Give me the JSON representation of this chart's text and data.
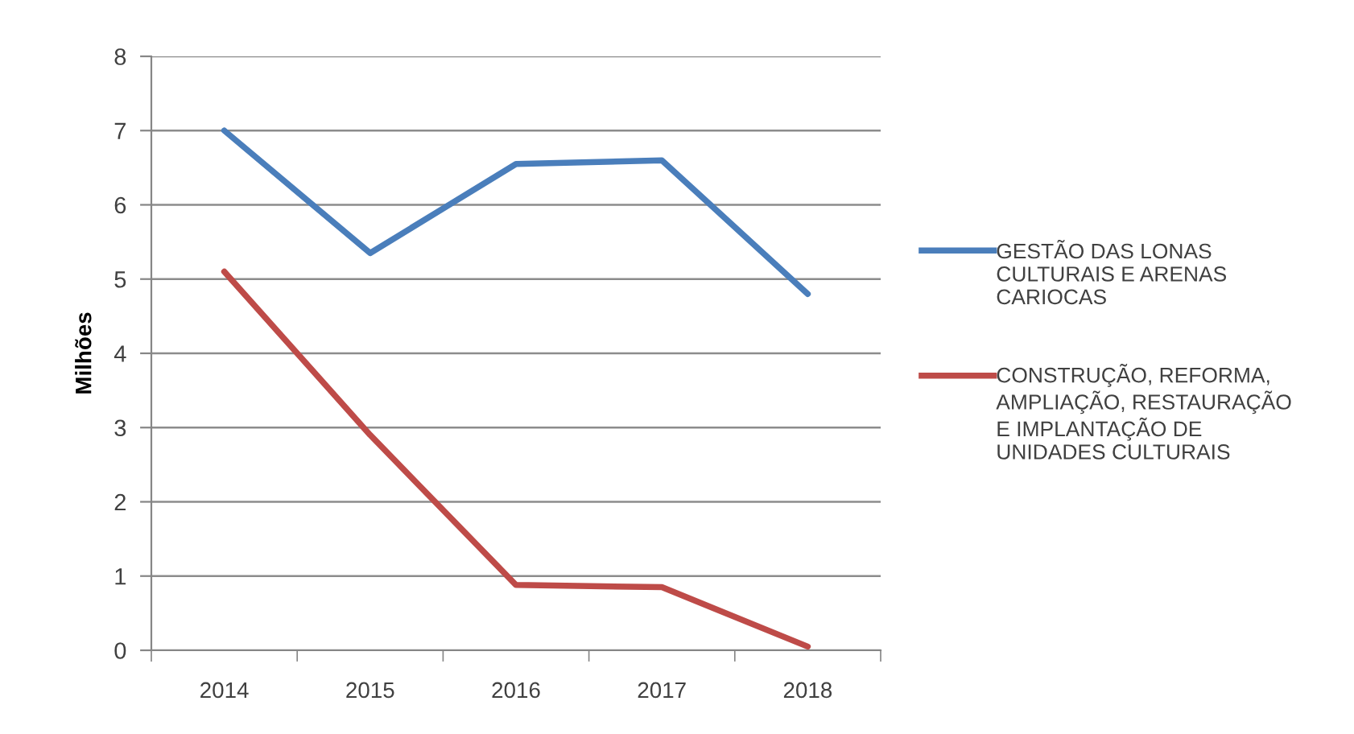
{
  "chart_data": {
    "type": "line",
    "ylabel": "Milhões",
    "categories": [
      "2014",
      "2015",
      "2016",
      "2017",
      "2018"
    ],
    "series": [
      {
        "name": "GESTÃO DAS LONAS\nCULTURAIS E ARENAS\nCARIOCAS",
        "color": "#4a7ebb",
        "values": [
          7.0,
          5.35,
          6.55,
          6.6,
          4.8
        ]
      },
      {
        "name": "CONSTRUÇÃO, REFORMA,\nAMPLIAÇÃO, RESTAURAÇÃO\nE IMPLANTAÇÃO DE\nUNIDADES CULTURAIS",
        "color": "#be4b48",
        "values": [
          5.1,
          2.9,
          0.88,
          0.85,
          0.05
        ]
      }
    ],
    "ylim": [
      0,
      8
    ],
    "yticks": [
      0,
      1,
      2,
      3,
      4,
      5,
      6,
      7,
      8
    ],
    "grid": "y",
    "legend": "right",
    "marker": "none",
    "line_style": "solid"
  }
}
